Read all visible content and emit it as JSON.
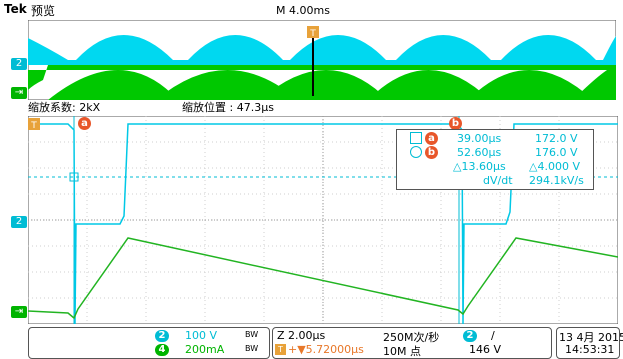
{
  "header": {
    "brand": "Tek",
    "mode": "预览",
    "timebase": "M 4.00ms"
  },
  "zoom": {
    "factor_label": "缩放系数: 2kX",
    "position_label": "缩放位置 : 47.3µs"
  },
  "channels": {
    "ch2": "2",
    "ch4": "4"
  },
  "cursors": {
    "a": "a",
    "b": "b",
    "trigger": "T"
  },
  "readout": {
    "row_a": {
      "time": "39.00µs",
      "value": "172.0 V"
    },
    "row_b": {
      "time": "52.60µs",
      "value": "176.0 V"
    },
    "row_delta": {
      "time": "△13.60µs",
      "value": "△4.000 V"
    },
    "row_slope": {
      "label": "dV/dt",
      "value": "294.1kV/s"
    }
  },
  "status": {
    "ch2_scale": "100 V",
    "ch4_scale": "200mA",
    "bw_symbol": "BW",
    "horizontal_scale": "Z 2.00µs",
    "trigger_delay": "+▼5.72000µs",
    "sample_rate": "250M次/秒",
    "record_length": "10M 点",
    "trig_source": "2",
    "trig_slope": "∕",
    "trig_level": "146 V",
    "date": "13 4月 2015",
    "time": "14:53:31"
  },
  "colors": {
    "ch2": "#00bcd4",
    "ch4": "#00b400",
    "cursor": "#e8562a"
  }
}
